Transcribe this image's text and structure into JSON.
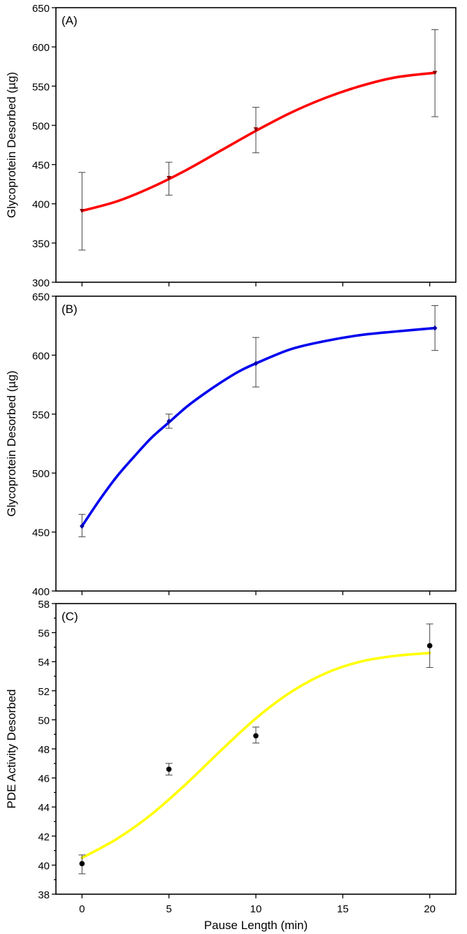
{
  "chart_data": [
    {
      "type": "line",
      "panel_label": "(A)",
      "xlabel": "",
      "ylabel": "Glycoprotein Desorbed (µg)",
      "xlim": [
        -1.5,
        21.5
      ],
      "ylim": [
        300,
        650
      ],
      "x_ticks": [
        0,
        5,
        10,
        15,
        20
      ],
      "y_ticks": [
        300,
        350,
        400,
        450,
        500,
        550,
        600,
        650
      ],
      "y_ticks_labeled": [
        300,
        350,
        400,
        450,
        500,
        550,
        600,
        650
      ],
      "x_tick_labels_shown": false,
      "color": "#ff0000",
      "marker": "triangle-down",
      "points": [
        {
          "x": 0,
          "y": 391,
          "err_low": 341,
          "err_high": 440
        },
        {
          "x": 5,
          "y": 433,
          "err_low": 411,
          "err_high": 453
        },
        {
          "x": 10,
          "y": 495,
          "err_low": 465,
          "err_high": 523
        },
        {
          "x": 20.3,
          "y": 567,
          "err_low": 511,
          "err_high": 622
        }
      ],
      "fit": {
        "x": [
          0,
          2,
          4,
          6,
          8,
          10,
          12,
          14,
          16,
          18,
          20.3
        ],
        "y": [
          391,
          403,
          421,
          443,
          468,
          493,
          516,
          535,
          550,
          561,
          567
        ]
      }
    },
    {
      "type": "line",
      "panel_label": "(B)",
      "xlabel": "",
      "ylabel": "Glycoprotein Desorbed (µg)",
      "xlim": [
        -1.5,
        21.5
      ],
      "ylim": [
        400,
        650
      ],
      "x_ticks": [
        0,
        5,
        10,
        15,
        20
      ],
      "y_ticks": [
        400,
        450,
        500,
        550,
        600,
        650
      ],
      "y_ticks_labeled": [
        400,
        450,
        500,
        550,
        600,
        650
      ],
      "x_tick_labels_shown": false,
      "color": "#0000ee",
      "marker": "diamond",
      "points": [
        {
          "x": 0,
          "y": 455,
          "err_low": 446,
          "err_high": 465
        },
        {
          "x": 5,
          "y": 544,
          "err_low": 538,
          "err_high": 550
        },
        {
          "x": 10,
          "y": 593,
          "err_low": 573,
          "err_high": 615
        },
        {
          "x": 20.3,
          "y": 623,
          "err_low": 604,
          "err_high": 642
        }
      ],
      "fit": {
        "x": [
          0,
          1,
          2,
          3,
          4,
          5,
          6,
          7,
          8,
          9,
          10,
          12,
          14,
          16,
          18,
          20.3
        ],
        "y": [
          455,
          477,
          497,
          514,
          530,
          543,
          556,
          567,
          577,
          586,
          593,
          605,
          612,
          617,
          620,
          623
        ]
      }
    },
    {
      "type": "scatter",
      "panel_label": "(C)",
      "xlabel": "Pause Length (min)",
      "ylabel": "PDE Activity Desorbed",
      "xlim": [
        -1.5,
        21.5
      ],
      "ylim": [
        38,
        58
      ],
      "x_ticks": [
        0,
        5,
        10,
        15,
        20
      ],
      "y_ticks": [
        38,
        39,
        40,
        41,
        42,
        43,
        44,
        45,
        46,
        47,
        48,
        49,
        50,
        51,
        52,
        53,
        54,
        55,
        56,
        57,
        58
      ],
      "y_ticks_labeled": [
        38,
        40,
        42,
        44,
        46,
        48,
        50,
        52,
        54,
        56,
        58
      ],
      "x_tick_labels_shown": true,
      "color": "#ffff00",
      "marker": "circle",
      "points": [
        {
          "x": 0,
          "y": 40.1,
          "err_low": 39.4,
          "err_high": 40.7
        },
        {
          "x": 5,
          "y": 46.6,
          "err_low": 46.2,
          "err_high": 47.0
        },
        {
          "x": 10,
          "y": 48.9,
          "err_low": 48.4,
          "err_high": 49.5
        },
        {
          "x": 20,
          "y": 55.1,
          "err_low": 53.6,
          "err_high": 56.6
        }
      ],
      "fit": {
        "x": [
          0,
          2,
          4,
          6,
          8,
          10,
          12,
          14,
          16,
          18,
          20
        ],
        "y": [
          40.5,
          41.8,
          43.5,
          45.6,
          47.9,
          50.1,
          51.9,
          53.2,
          54.0,
          54.4,
          54.6
        ]
      }
    }
  ]
}
